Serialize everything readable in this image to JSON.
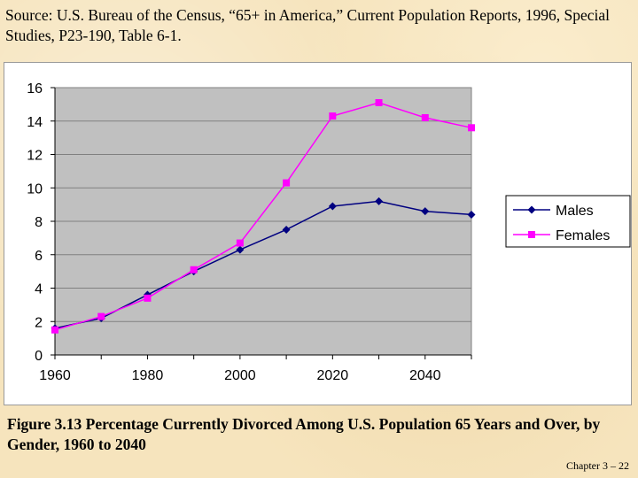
{
  "source_text": "Source: U.S. Bureau of the Census, “65+ in America,” Current Population Reports, 1996, Special Studies, P23-190, Table 6-1.",
  "caption": "Figure 3.13  Percentage Currently Divorced Among U.S. Population 65 Years and Over, by Gender, 1960 to 2040",
  "footer": "Chapter 3 – 22",
  "chart_data": {
    "type": "line",
    "title": "",
    "xlabel": "",
    "ylabel": "",
    "x": [
      1960,
      1970,
      1980,
      1990,
      2000,
      2010,
      2020,
      2030,
      2040,
      2050
    ],
    "xlim": [
      1960,
      2050
    ],
    "ylim": [
      0,
      16
    ],
    "x_ticks": [
      "1960",
      "1980",
      "2000",
      "2020",
      "2040"
    ],
    "x_tick_values": [
      1960,
      1980,
      2000,
      2020,
      2040
    ],
    "y_ticks": [
      "0",
      "2",
      "4",
      "6",
      "8",
      "10",
      "12",
      "14",
      "16"
    ],
    "y_tick_values": [
      0,
      2,
      4,
      6,
      8,
      10,
      12,
      14,
      16
    ],
    "grid": true,
    "legend_position": "right",
    "series": [
      {
        "name": "Males",
        "color": "#000080",
        "marker": "diamond",
        "values": [
          1.6,
          2.2,
          3.6,
          5.0,
          6.3,
          7.5,
          8.9,
          9.2,
          8.6,
          8.4
        ]
      },
      {
        "name": "Females",
        "color": "#ff00ff",
        "marker": "square",
        "values": [
          1.5,
          2.3,
          3.4,
          5.1,
          6.7,
          10.3,
          14.3,
          15.1,
          14.2,
          13.6
        ]
      }
    ]
  },
  "colors": {
    "plot_background": "#c0c0c0",
    "gridline": "#808080"
  }
}
